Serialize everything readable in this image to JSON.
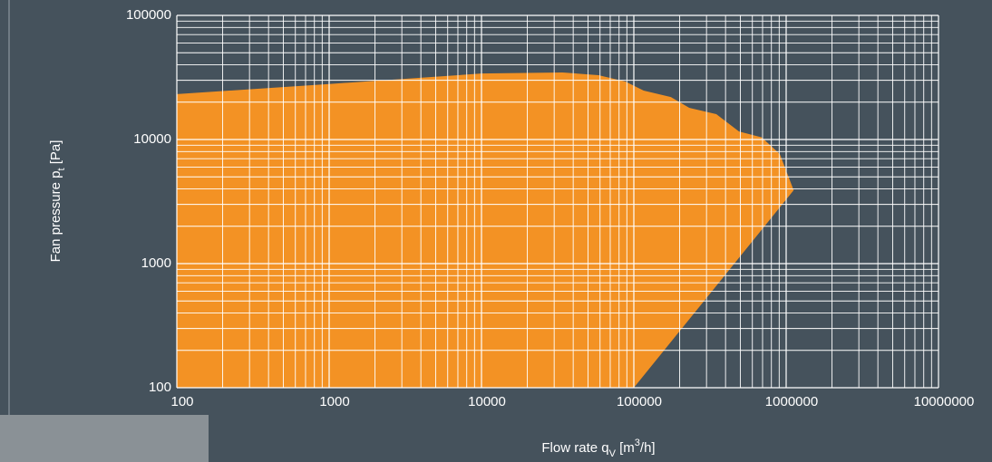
{
  "chart_data": {
    "type": "area",
    "xlabel": {
      "text": "Flow rate q",
      "sub": "V",
      "unit": " [m",
      "sup": "3",
      "unit_end": "/h]"
    },
    "ylabel": {
      "text": "Fan pressure p",
      "sub": "t",
      "unit": " [Pa]"
    },
    "xscale": "log",
    "yscale": "log",
    "xlim": [
      100,
      10000000
    ],
    "ylim": [
      100,
      100000
    ],
    "xticks": [
      100,
      1000,
      10000,
      100000,
      1000000,
      10000000
    ],
    "yticks": [
      100,
      1000,
      10000,
      100000
    ],
    "grid": "major-minor",
    "series": [
      {
        "color": "#f39224",
        "x": [
          100,
          1000,
          10000,
          34000,
          58600,
          88000,
          116000,
          175000,
          231000,
          348000,
          490000,
          690000,
          908000,
          1120000,
          100000,
          100
        ],
        "values": [
          23200,
          28000,
          34000,
          34700,
          33000,
          29300,
          24800,
          22000,
          18000,
          16000,
          11600,
          10400,
          7650,
          3900,
          100,
          100
        ]
      }
    ]
  }
}
